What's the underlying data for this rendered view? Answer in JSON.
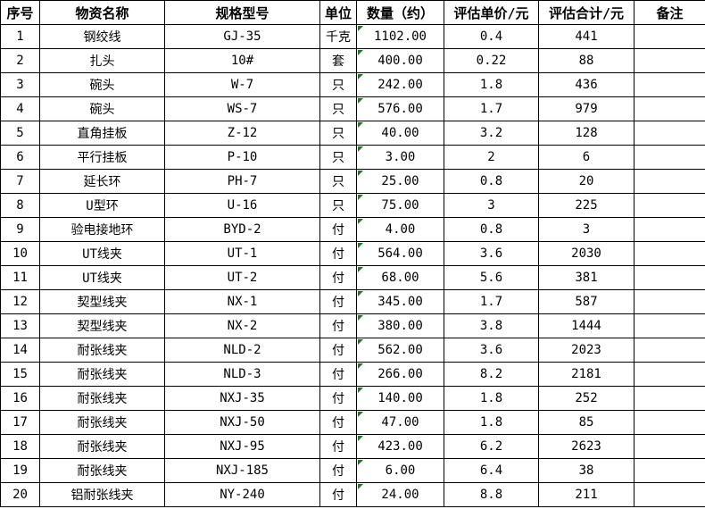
{
  "colors": {
    "grid_border": "#000000",
    "background": "#ffffff",
    "text": "#000000",
    "indicator_green": "#1f7a1f"
  },
  "table": {
    "columns": [
      "序号",
      "物资名称",
      "规格型号",
      "单位",
      "数量（约）",
      "评估单价/元",
      "评估合计/元",
      "备注"
    ],
    "rows": [
      {
        "no": "1",
        "name": "钢绞线",
        "spec": "GJ-35",
        "unit": "千克",
        "qty": "1102.00",
        "price": "0.4",
        "total": "441",
        "remark": ""
      },
      {
        "no": "2",
        "name": "扎头",
        "spec": "10#",
        "unit": "套",
        "qty": "400.00",
        "price": "0.22",
        "total": "88",
        "remark": ""
      },
      {
        "no": "3",
        "name": "碗头",
        "spec": "W-7",
        "unit": "只",
        "qty": "242.00",
        "price": "1.8",
        "total": "436",
        "remark": ""
      },
      {
        "no": "4",
        "name": "碗头",
        "spec": "WS-7",
        "unit": "只",
        "qty": "576.00",
        "price": "1.7",
        "total": "979",
        "remark": ""
      },
      {
        "no": "5",
        "name": "直角挂板",
        "spec": "Z-12",
        "unit": "只",
        "qty": "40.00",
        "price": "3.2",
        "total": "128",
        "remark": ""
      },
      {
        "no": "6",
        "name": "平行挂板",
        "spec": "P-10",
        "unit": "只",
        "qty": "3.00",
        "price": "2",
        "total": "6",
        "remark": ""
      },
      {
        "no": "7",
        "name": "延长环",
        "spec": "PH-7",
        "unit": "只",
        "qty": "25.00",
        "price": "0.8",
        "total": "20",
        "remark": ""
      },
      {
        "no": "8",
        "name": "U型环",
        "spec": "U-16",
        "unit": "只",
        "qty": "75.00",
        "price": "3",
        "total": "225",
        "remark": ""
      },
      {
        "no": "9",
        "name": "验电接地环",
        "spec": "BYD-2",
        "unit": "付",
        "qty": "4.00",
        "price": "0.8",
        "total": "3",
        "remark": ""
      },
      {
        "no": "10",
        "name": "UT线夹",
        "spec": "UT-1",
        "unit": "付",
        "qty": "564.00",
        "price": "3.6",
        "total": "2030",
        "remark": ""
      },
      {
        "no": "11",
        "name": "UT线夹",
        "spec": "UT-2",
        "unit": "付",
        "qty": "68.00",
        "price": "5.6",
        "total": "381",
        "remark": ""
      },
      {
        "no": "12",
        "name": "契型线夹",
        "spec": "NX-1",
        "unit": "付",
        "qty": "345.00",
        "price": "1.7",
        "total": "587",
        "remark": ""
      },
      {
        "no": "13",
        "name": "契型线夹",
        "spec": "NX-2",
        "unit": "付",
        "qty": "380.00",
        "price": "3.8",
        "total": "1444",
        "remark": ""
      },
      {
        "no": "14",
        "name": "耐张线夹",
        "spec": "NLD-2",
        "unit": "付",
        "qty": "562.00",
        "price": "3.6",
        "total": "2023",
        "remark": ""
      },
      {
        "no": "15",
        "name": "耐张线夹",
        "spec": "NLD-3",
        "unit": "付",
        "qty": "266.00",
        "price": "8.2",
        "total": "2181",
        "remark": ""
      },
      {
        "no": "16",
        "name": "耐张线夹",
        "spec": "NXJ-35",
        "unit": "付",
        "qty": "140.00",
        "price": "1.8",
        "total": "252",
        "remark": ""
      },
      {
        "no": "17",
        "name": "耐张线夹",
        "spec": "NXJ-50",
        "unit": "付",
        "qty": "47.00",
        "price": "1.8",
        "total": "85",
        "remark": ""
      },
      {
        "no": "18",
        "name": "耐张线夹",
        "spec": "NXJ-95",
        "unit": "付",
        "qty": "423.00",
        "price": "6.2",
        "total": "2623",
        "remark": ""
      },
      {
        "no": "19",
        "name": "耐张线夹",
        "spec": "NXJ-185",
        "unit": "付",
        "qty": "6.00",
        "price": "6.4",
        "total": "38",
        "remark": ""
      },
      {
        "no": "20",
        "name": "铝耐张线夹",
        "spec": "NY-240",
        "unit": "付",
        "qty": "24.00",
        "price": "8.8",
        "total": "211",
        "remark": ""
      }
    ]
  }
}
